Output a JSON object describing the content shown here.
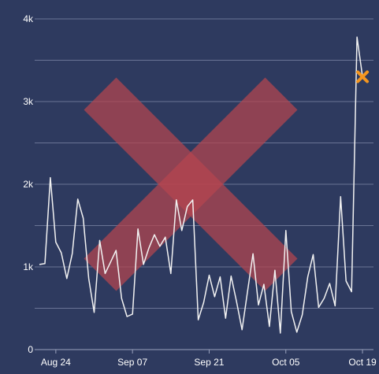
{
  "chart_data": {
    "type": "line",
    "title": "",
    "xlabel": "",
    "ylabel": "",
    "ylim": [
      0,
      4000
    ],
    "grid": true,
    "y_ticks": [
      {
        "value": 0,
        "label": "0"
      },
      {
        "value": 1000,
        "label": "1k"
      },
      {
        "value": 2000,
        "label": "2k"
      },
      {
        "value": 3000,
        "label": "3k"
      },
      {
        "value": 4000,
        "label": "4k"
      }
    ],
    "x_ticks": [
      {
        "day": 3,
        "label": "Aug 24"
      },
      {
        "day": 17,
        "label": "Sep 07"
      },
      {
        "day": 31,
        "label": "Sep 21"
      },
      {
        "day": 45,
        "label": "Oct 05"
      },
      {
        "day": 59,
        "label": "Oct 19"
      }
    ],
    "series": [
      {
        "line_color": "#f2f2f2",
        "x": [
          "Aug 21",
          "Aug 22",
          "Aug 23",
          "Aug 24",
          "Aug 25",
          "Aug 26",
          "Aug 27",
          "Aug 28",
          "Aug 29",
          "Aug 30",
          "Aug 31",
          "Sep 01",
          "Sep 02",
          "Sep 03",
          "Sep 04",
          "Sep 05",
          "Sep 06",
          "Sep 07",
          "Sep 08",
          "Sep 09",
          "Sep 10",
          "Sep 11",
          "Sep 12",
          "Sep 13",
          "Sep 14",
          "Sep 15",
          "Sep 16",
          "Sep 17",
          "Sep 18",
          "Sep 19",
          "Sep 20",
          "Sep 21",
          "Sep 22",
          "Sep 23",
          "Sep 24",
          "Sep 25",
          "Sep 26",
          "Sep 27",
          "Sep 28",
          "Sep 29",
          "Sep 30",
          "Oct 01",
          "Oct 02",
          "Oct 03",
          "Oct 04",
          "Oct 05",
          "Oct 06",
          "Oct 07",
          "Oct 08",
          "Oct 09",
          "Oct 10",
          "Oct 11",
          "Oct 12",
          "Oct 13",
          "Oct 14",
          "Oct 15",
          "Oct 16",
          "Oct 17",
          "Oct 18",
          "Oct 19"
        ],
        "y": [
          1030,
          1040,
          2080,
          1300,
          1170,
          860,
          1160,
          1820,
          1590,
          860,
          450,
          1320,
          920,
          1060,
          1200,
          620,
          400,
          430,
          1460,
          1030,
          1230,
          1390,
          1250,
          1360,
          920,
          1810,
          1440,
          1730,
          1810,
          360,
          570,
          900,
          640,
          880,
          380,
          890,
          580,
          240,
          700,
          1160,
          540,
          790,
          280,
          960,
          200,
          1440,
          460,
          210,
          420,
          880,
          1150,
          510,
          620,
          800,
          530,
          1850,
          830,
          700,
          3780,
          3300
        ]
      }
    ],
    "highlight": {
      "x": "Oct 19",
      "y": 3300,
      "marker": "x",
      "color": "#f5961f"
    }
  },
  "overlay": {
    "shape": "x",
    "color": "#b5454f"
  },
  "style": {
    "background": "#2e3a5f",
    "grid_color": "#6a7495"
  }
}
